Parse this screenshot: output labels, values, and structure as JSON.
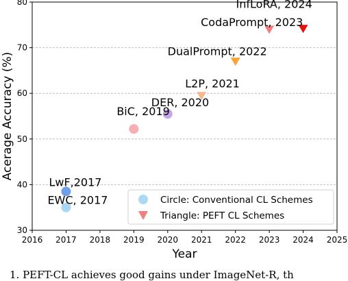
{
  "caption_fragment": "1. PEFT-CL achieves good gains under ImageNet-R, th",
  "chart_data": {
    "type": "scatter",
    "title": "",
    "xlabel": "Year",
    "ylabel": "Acerage Accuracy (%)",
    "xlim": [
      2016,
      2025
    ],
    "ylim": [
      30,
      80
    ],
    "x_ticks": [
      "2016",
      "2017",
      "2018",
      "2019",
      "2020",
      "2021",
      "2022",
      "2023",
      "2024",
      "2025"
    ],
    "y_ticks": [
      "30",
      "40",
      "50",
      "60",
      "70",
      "80"
    ],
    "grid": "horizontal dashed",
    "legend_position": "lower-right",
    "series": [
      {
        "name": "Circle: Conventional CL Schemes",
        "marker": "circle",
        "legend_color": "#aad8f5",
        "points": [
          {
            "x": 2017,
            "y": 35.0,
            "label": "EWC, 2017",
            "color": "#a9d6f5"
          },
          {
            "x": 2017,
            "y": 38.5,
            "label": "LwF,2017",
            "color": "#6f9fea"
          },
          {
            "x": 2019,
            "y": 52.2,
            "label": "BiC, 2019",
            "color": "#f7adb5"
          },
          {
            "x": 2020,
            "y": 55.5,
            "label": "DER, 2020",
            "color": "#c5a6e6"
          }
        ]
      },
      {
        "name": "Triangle: PEFT CL Schemes",
        "marker": "triangle-down",
        "legend_color": "#f07f7f",
        "points": [
          {
            "x": 2021,
            "y": 59.5,
            "label": "L2P, 2021",
            "color": "#f6b98c"
          },
          {
            "x": 2022,
            "y": 67.0,
            "label": "DualPrompt, 2022",
            "color": "#f7a53a"
          },
          {
            "x": 2023,
            "y": 74.0,
            "label": "CodaPrompt, 2023",
            "color": "#f27f7f"
          },
          {
            "x": 2024,
            "y": 74.2,
            "label": "InfLoRA, 2024",
            "color": "#e8100f"
          }
        ]
      }
    ]
  }
}
